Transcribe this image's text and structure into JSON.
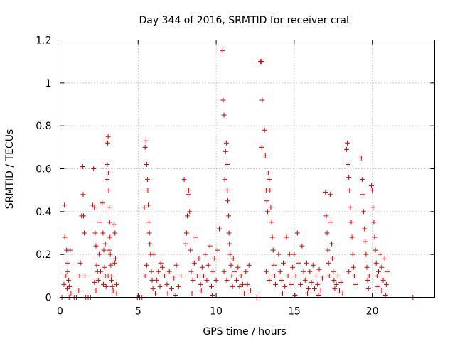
{
  "chart_data": {
    "type": "scatter",
    "title": "Day 344 of 2016, SRMTID for receiver crat",
    "xlabel": "GPS time / hours",
    "ylabel": "SRMTID / TECUs",
    "xlim": [
      0,
      24
    ],
    "ylim": [
      0,
      1.2
    ],
    "xticks": [
      0,
      5,
      10,
      15,
      20
    ],
    "xtick_labels": [
      "0",
      "5",
      "10",
      "15",
      "20"
    ],
    "yticks": [
      0,
      0.2,
      0.4,
      0.6,
      0.8,
      1.0,
      1.2
    ],
    "ytick_labels": [
      "0",
      "0.2",
      "0.4",
      "0.6",
      "0.8",
      "1",
      "1.2"
    ],
    "grid": true,
    "marker": "+",
    "color": "#e00000",
    "series": [
      {
        "name": "SRMTID",
        "points": [
          [
            0.12,
            0.0
          ],
          [
            0.28,
            0.43
          ],
          [
            0.3,
            0.28
          ],
          [
            0.42,
            0.22
          ],
          [
            0.48,
            0.12
          ],
          [
            0.55,
            0.08
          ],
          [
            0.6,
            0.05
          ],
          [
            0.65,
            0.22
          ],
          [
            0.7,
            0.02
          ],
          [
            0.38,
            0.1
          ],
          [
            0.5,
            0.16
          ],
          [
            0.45,
            0.04
          ],
          [
            0.58,
            0.0
          ],
          [
            0.25,
            0.06
          ],
          [
            0.9,
            0.0
          ],
          [
            1.05,
            0.0
          ],
          [
            1.2,
            0.03
          ],
          [
            1.25,
            0.1
          ],
          [
            1.3,
            0.16
          ],
          [
            1.38,
            0.38
          ],
          [
            1.45,
            0.61
          ],
          [
            1.48,
            0.48
          ],
          [
            1.5,
            0.38
          ],
          [
            1.55,
            0.3
          ],
          [
            1.6,
            0.1
          ],
          [
            1.65,
            0.0
          ],
          [
            1.8,
            0.0
          ],
          [
            1.95,
            0.0
          ],
          [
            2.1,
            0.43
          ],
          [
            2.15,
            0.6
          ],
          [
            2.2,
            0.42
          ],
          [
            2.25,
            0.3
          ],
          [
            2.3,
            0.24
          ],
          [
            2.35,
            0.15
          ],
          [
            2.4,
            0.12
          ],
          [
            2.45,
            0.08
          ],
          [
            2.5,
            0.2
          ],
          [
            2.55,
            0.35
          ],
          [
            2.6,
            0.12
          ],
          [
            2.2,
            0.07
          ],
          [
            2.3,
            0.03
          ],
          [
            2.7,
            0.44
          ],
          [
            2.75,
            0.3
          ],
          [
            2.8,
            0.22
          ],
          [
            2.85,
            0.14
          ],
          [
            2.9,
            0.1
          ],
          [
            2.95,
            0.05
          ],
          [
            2.78,
            0.06
          ],
          [
            2.9,
            0.25
          ],
          [
            3.0,
            0.55
          ],
          [
            3.02,
            0.62
          ],
          [
            3.05,
            0.72
          ],
          [
            3.08,
            0.75
          ],
          [
            3.1,
            0.58
          ],
          [
            3.12,
            0.5
          ],
          [
            3.15,
            0.42
          ],
          [
            3.18,
            0.35
          ],
          [
            3.2,
            0.28
          ],
          [
            3.22,
            0.2
          ],
          [
            3.25,
            0.15
          ],
          [
            3.28,
            0.08
          ],
          [
            3.3,
            0.1
          ],
          [
            3.35,
            0.05
          ],
          [
            3.4,
            0.03
          ],
          [
            3.45,
            0.34
          ],
          [
            3.5,
            0.16
          ],
          [
            3.52,
            0.3
          ],
          [
            3.55,
            0.18
          ],
          [
            3.6,
            0.06
          ],
          [
            3.62,
            0.02
          ],
          [
            3.08,
            0.1
          ],
          [
            3.15,
            0.22
          ],
          [
            4.95,
            0.0
          ],
          [
            5.1,
            0.0
          ],
          [
            5.25,
            0.0
          ],
          [
            5.4,
            0.42
          ],
          [
            5.45,
            0.7
          ],
          [
            5.5,
            0.73
          ],
          [
            5.55,
            0.62
          ],
          [
            5.6,
            0.55
          ],
          [
            5.62,
            0.5
          ],
          [
            5.65,
            0.43
          ],
          [
            5.7,
            0.35
          ],
          [
            5.72,
            0.3
          ],
          [
            5.75,
            0.25
          ],
          [
            5.8,
            0.2
          ],
          [
            5.85,
            0.12
          ],
          [
            5.9,
            0.08
          ],
          [
            5.95,
            0.04
          ],
          [
            5.45,
            0.1
          ],
          [
            5.55,
            0.15
          ],
          [
            6.0,
            0.2
          ],
          [
            6.2,
            0.08
          ],
          [
            6.3,
            0.12
          ],
          [
            6.4,
            0.05
          ],
          [
            6.55,
            0.14
          ],
          [
            6.7,
            0.1
          ],
          [
            6.85,
            0.06
          ],
          [
            7.0,
            0.12
          ],
          [
            7.15,
            0.04
          ],
          [
            7.3,
            0.09
          ],
          [
            7.45,
            0.15
          ],
          [
            7.6,
            0.05
          ],
          [
            7.75,
            0.1
          ],
          [
            6.1,
            0.02
          ],
          [
            6.45,
            0.16
          ],
          [
            6.9,
            0.02
          ],
          [
            7.4,
            0.01
          ],
          [
            7.95,
            0.55
          ],
          [
            8.05,
            0.25
          ],
          [
            8.1,
            0.3
          ],
          [
            8.15,
            0.38
          ],
          [
            8.2,
            0.48
          ],
          [
            8.25,
            0.5
          ],
          [
            8.3,
            0.4
          ],
          [
            8.35,
            0.22
          ],
          [
            8.4,
            0.12
          ],
          [
            8.5,
            0.08
          ],
          [
            8.6,
            0.16
          ],
          [
            8.7,
            0.28
          ],
          [
            8.8,
            0.1
          ],
          [
            8.9,
            0.18
          ],
          [
            9.0,
            0.06
          ],
          [
            9.1,
            0.14
          ],
          [
            9.2,
            0.1
          ],
          [
            9.3,
            0.2
          ],
          [
            9.4,
            0.08
          ],
          [
            9.5,
            0.15
          ],
          [
            9.6,
            0.24
          ],
          [
            9.7,
            0.05
          ],
          [
            9.8,
            0.12
          ],
          [
            9.9,
            0.18
          ],
          [
            10.0,
            0.08
          ],
          [
            10.1,
            0.22
          ],
          [
            10.2,
            0.32
          ],
          [
            8.45,
            0.02
          ],
          [
            9.05,
            0.03
          ],
          [
            9.75,
            0.01
          ],
          [
            10.42,
            1.15
          ],
          [
            10.45,
            0.92
          ],
          [
            10.5,
            0.85
          ],
          [
            10.55,
            0.55
          ],
          [
            10.6,
            0.68
          ],
          [
            10.65,
            0.72
          ],
          [
            10.7,
            0.62
          ],
          [
            10.72,
            0.5
          ],
          [
            10.75,
            0.45
          ],
          [
            10.8,
            0.38
          ],
          [
            10.82,
            0.3
          ],
          [
            10.85,
            0.25
          ],
          [
            10.9,
            0.2
          ],
          [
            10.95,
            0.15
          ],
          [
            11.0,
            0.1
          ],
          [
            11.05,
            0.05
          ],
          [
            10.5,
            0.12
          ],
          [
            10.68,
            0.08
          ],
          [
            11.1,
            0.18
          ],
          [
            11.2,
            0.12
          ],
          [
            11.3,
            0.08
          ],
          [
            11.4,
            0.14
          ],
          [
            11.5,
            0.05
          ],
          [
            11.6,
            0.1
          ],
          [
            11.7,
            0.06
          ],
          [
            11.8,
            0.02
          ],
          [
            11.9,
            0.12
          ],
          [
            12.0,
            0.06
          ],
          [
            12.1,
            0.15
          ],
          [
            12.2,
            0.03
          ],
          [
            12.6,
            0.0
          ],
          [
            12.75,
            0.0
          ],
          [
            12.85,
            1.1
          ],
          [
            12.9,
            1.1
          ],
          [
            12.95,
            0.92
          ],
          [
            12.92,
            0.7
          ],
          [
            13.1,
            0.78
          ],
          [
            13.15,
            0.66
          ],
          [
            13.2,
            0.5
          ],
          [
            13.25,
            0.45
          ],
          [
            13.3,
            0.4
          ],
          [
            13.35,
            0.58
          ],
          [
            13.4,
            0.55
          ],
          [
            13.45,
            0.5
          ],
          [
            13.5,
            0.42
          ],
          [
            13.55,
            0.35
          ],
          [
            13.6,
            0.28
          ],
          [
            13.65,
            0.22
          ],
          [
            13.7,
            0.15
          ],
          [
            13.75,
            0.1
          ],
          [
            13.8,
            0.06
          ],
          [
            13.2,
            0.12
          ],
          [
            13.4,
            0.08
          ],
          [
            14.0,
            0.2
          ],
          [
            14.1,
            0.12
          ],
          [
            14.2,
            0.08
          ],
          [
            14.3,
            0.16
          ],
          [
            14.4,
            0.05
          ],
          [
            14.5,
            0.28
          ],
          [
            14.6,
            0.1
          ],
          [
            14.7,
            0.2
          ],
          [
            14.8,
            0.06
          ],
          [
            14.9,
            0.14
          ],
          [
            15.0,
            0.2
          ],
          [
            15.1,
            0.1
          ],
          [
            15.2,
            0.3
          ],
          [
            15.3,
            0.16
          ],
          [
            15.4,
            0.06
          ],
          [
            15.5,
            0.24
          ],
          [
            15.6,
            0.12
          ],
          [
            15.7,
            0.08
          ],
          [
            15.8,
            0.16
          ],
          [
            15.9,
            0.04
          ],
          [
            16.0,
            0.12
          ],
          [
            16.1,
            0.07
          ],
          [
            16.2,
            0.15
          ],
          [
            16.3,
            0.04
          ],
          [
            16.4,
            0.1
          ],
          [
            16.5,
            0.06
          ],
          [
            16.6,
            0.13
          ],
          [
            16.7,
            0.03
          ],
          [
            16.8,
            0.09
          ],
          [
            14.25,
            0.02
          ],
          [
            15.05,
            0.01
          ],
          [
            15.85,
            0.02
          ],
          [
            16.55,
            0.01
          ],
          [
            17.0,
            0.49
          ],
          [
            17.05,
            0.38
          ],
          [
            17.1,
            0.3
          ],
          [
            17.15,
            0.22
          ],
          [
            17.2,
            0.16
          ],
          [
            17.25,
            0.1
          ],
          [
            17.3,
            0.48
          ],
          [
            17.35,
            0.35
          ],
          [
            17.4,
            0.25
          ],
          [
            17.45,
            0.18
          ],
          [
            17.5,
            0.12
          ],
          [
            17.55,
            0.08
          ],
          [
            17.6,
            0.04
          ],
          [
            17.7,
            0.06
          ],
          [
            17.8,
            0.1
          ],
          [
            17.9,
            0.03
          ],
          [
            18.0,
            0.07
          ],
          [
            18.1,
            0.02
          ],
          [
            18.35,
            0.69
          ],
          [
            18.4,
            0.72
          ],
          [
            18.45,
            0.62
          ],
          [
            18.5,
            0.56
          ],
          [
            18.55,
            0.5
          ],
          [
            18.6,
            0.42
          ],
          [
            18.65,
            0.35
          ],
          [
            18.7,
            0.28
          ],
          [
            18.75,
            0.2
          ],
          [
            18.8,
            0.14
          ],
          [
            18.85,
            0.1
          ],
          [
            18.9,
            0.06
          ],
          [
            18.5,
            0.12
          ],
          [
            19.3,
            0.65
          ],
          [
            19.35,
            0.55
          ],
          [
            19.4,
            0.48
          ],
          [
            19.45,
            0.4
          ],
          [
            19.5,
            0.32
          ],
          [
            19.55,
            0.26
          ],
          [
            19.6,
            0.2
          ],
          [
            19.65,
            0.14
          ],
          [
            19.7,
            0.08
          ],
          [
            19.75,
            0.04
          ],
          [
            19.8,
            0.1
          ],
          [
            19.95,
            0.52
          ],
          [
            20.0,
            0.5
          ],
          [
            20.05,
            0.42
          ],
          [
            20.1,
            0.35
          ],
          [
            20.15,
            0.28
          ],
          [
            20.2,
            0.22
          ],
          [
            20.25,
            0.16
          ],
          [
            20.3,
            0.1
          ],
          [
            20.35,
            0.05
          ],
          [
            20.4,
            0.12
          ],
          [
            20.5,
            0.2
          ],
          [
            20.6,
            0.14
          ],
          [
            20.7,
            0.08
          ],
          [
            20.8,
            0.18
          ],
          [
            20.9,
            0.06
          ],
          [
            20.95,
            0.12
          ],
          [
            20.6,
            0.03
          ],
          [
            20.85,
            0.01
          ],
          [
            22.6,
            0.0
          ]
        ]
      }
    ]
  }
}
